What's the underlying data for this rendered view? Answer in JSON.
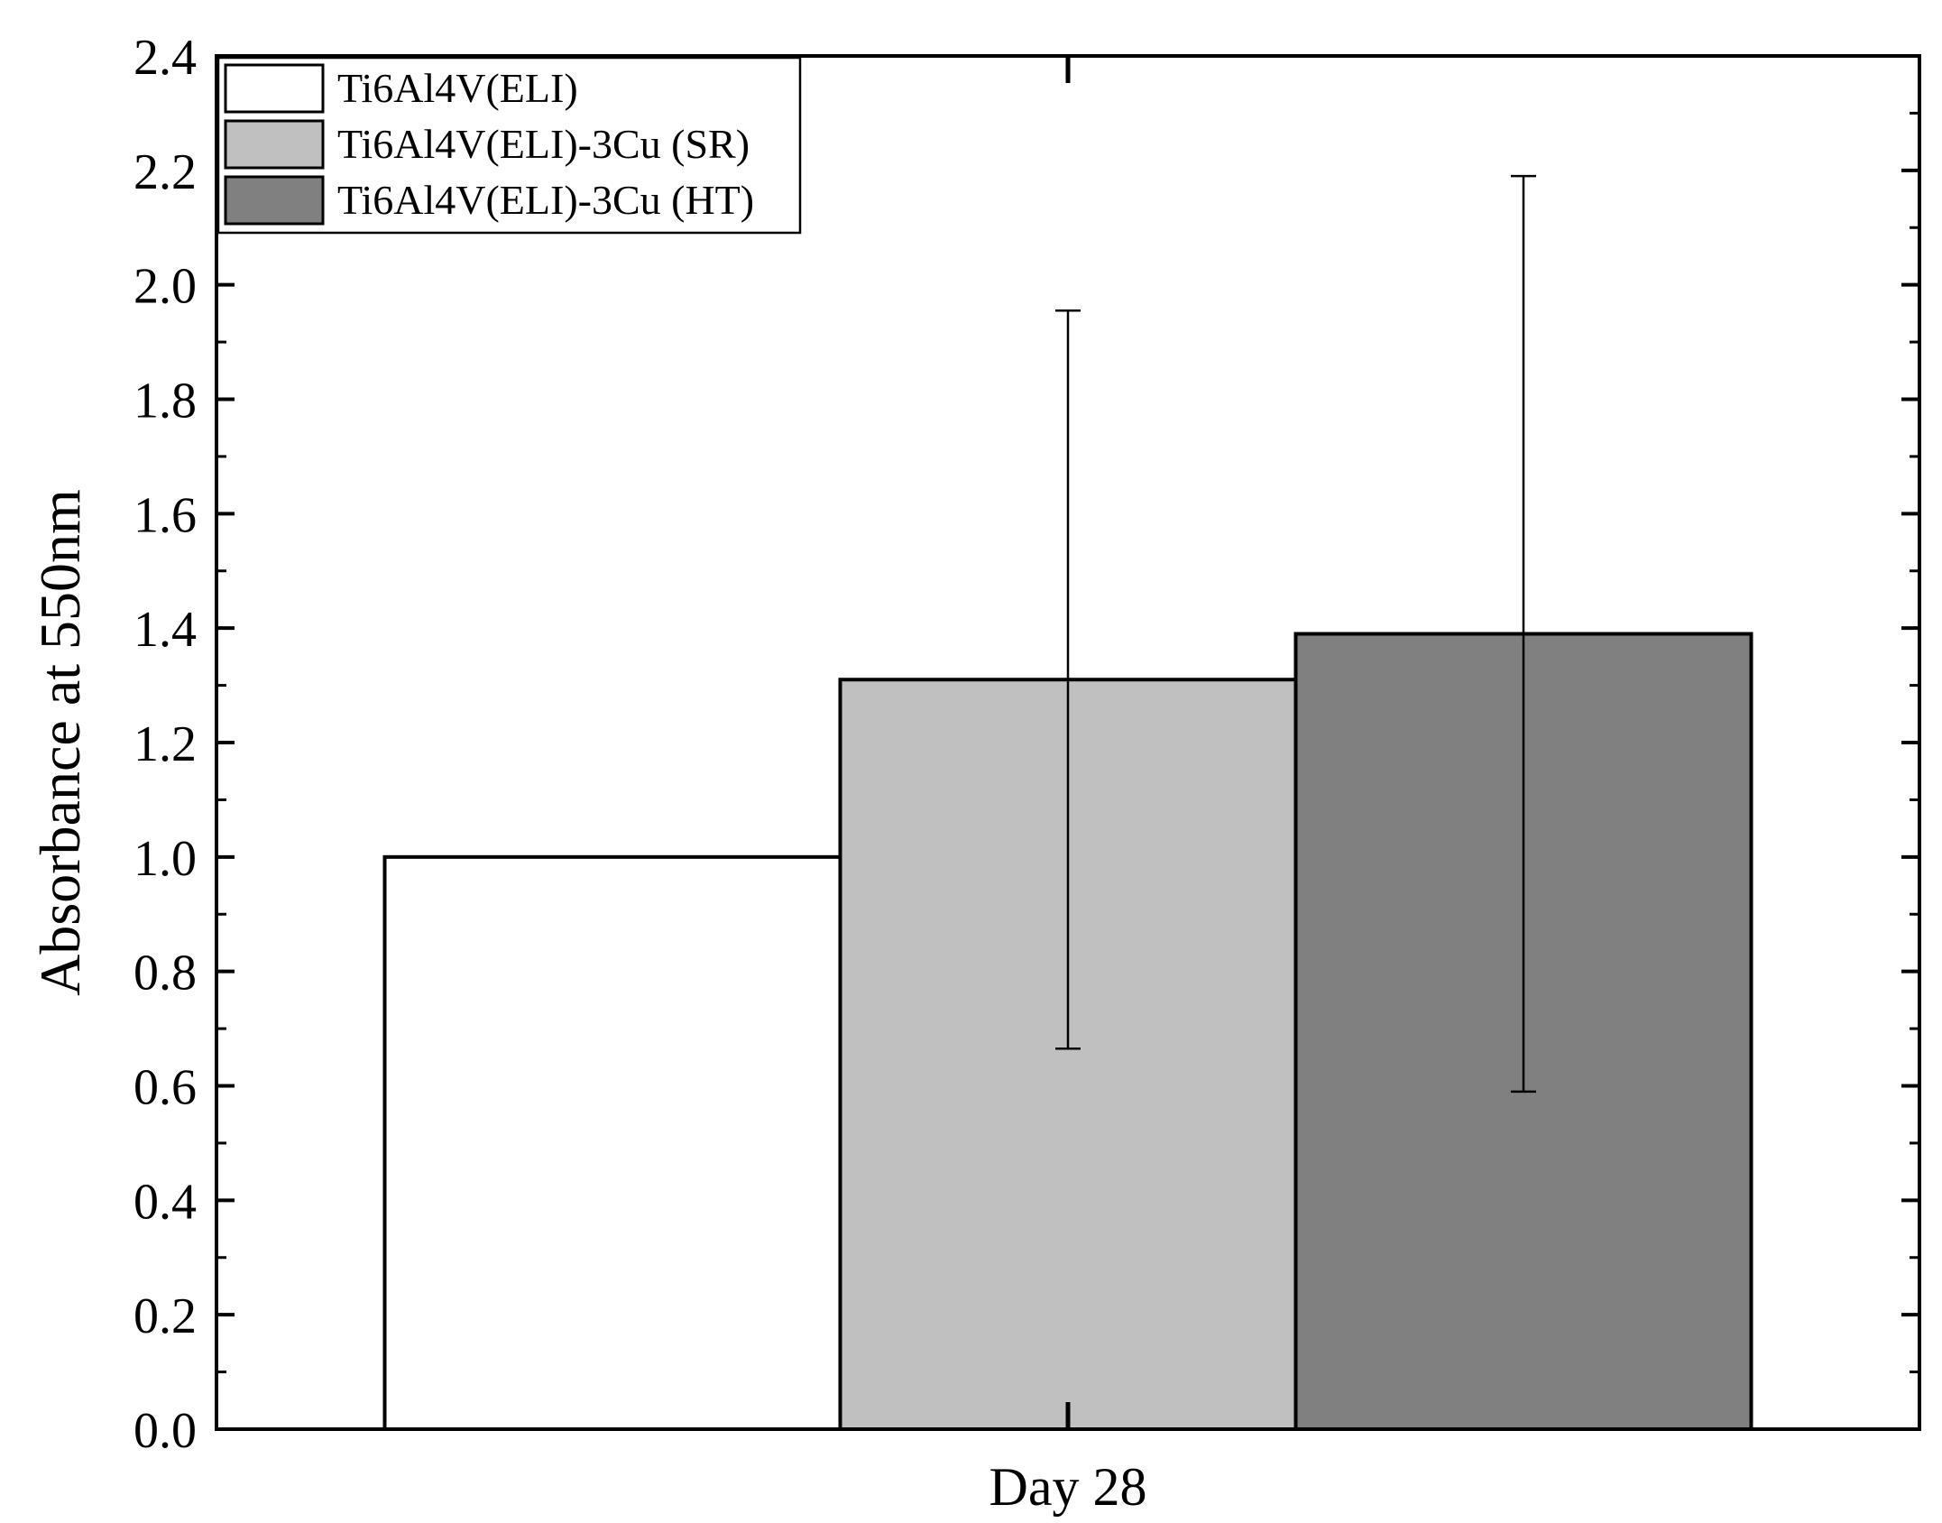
{
  "chart_data": {
    "type": "bar",
    "categories": [
      "Day 28"
    ],
    "series": [
      {
        "name": "Ti6Al4V(ELI)",
        "values": [
          1.0
        ],
        "error": [
          0
        ],
        "color": "#ffffff"
      },
      {
        "name": "Ti6Al4V(ELI)-3Cu (SR)",
        "values": [
          1.31
        ],
        "error": [
          0.645
        ],
        "color": "#c0c0c0"
      },
      {
        "name": "Ti6Al4V(ELI)-3Cu (HT)",
        "values": [
          1.39
        ],
        "error": [
          0.8
        ],
        "color": "#808080"
      }
    ],
    "ylabel": "Absorbance at 550nm",
    "ylim": [
      0,
      2.4
    ],
    "yticks": [
      "0.0",
      "0.2",
      "0.4",
      "0.6",
      "0.8",
      "1.0",
      "1.2",
      "1.4",
      "1.6",
      "1.8",
      "2.0",
      "2.2",
      "2.4"
    ],
    "grid": false,
    "legend_position": "top-left"
  }
}
